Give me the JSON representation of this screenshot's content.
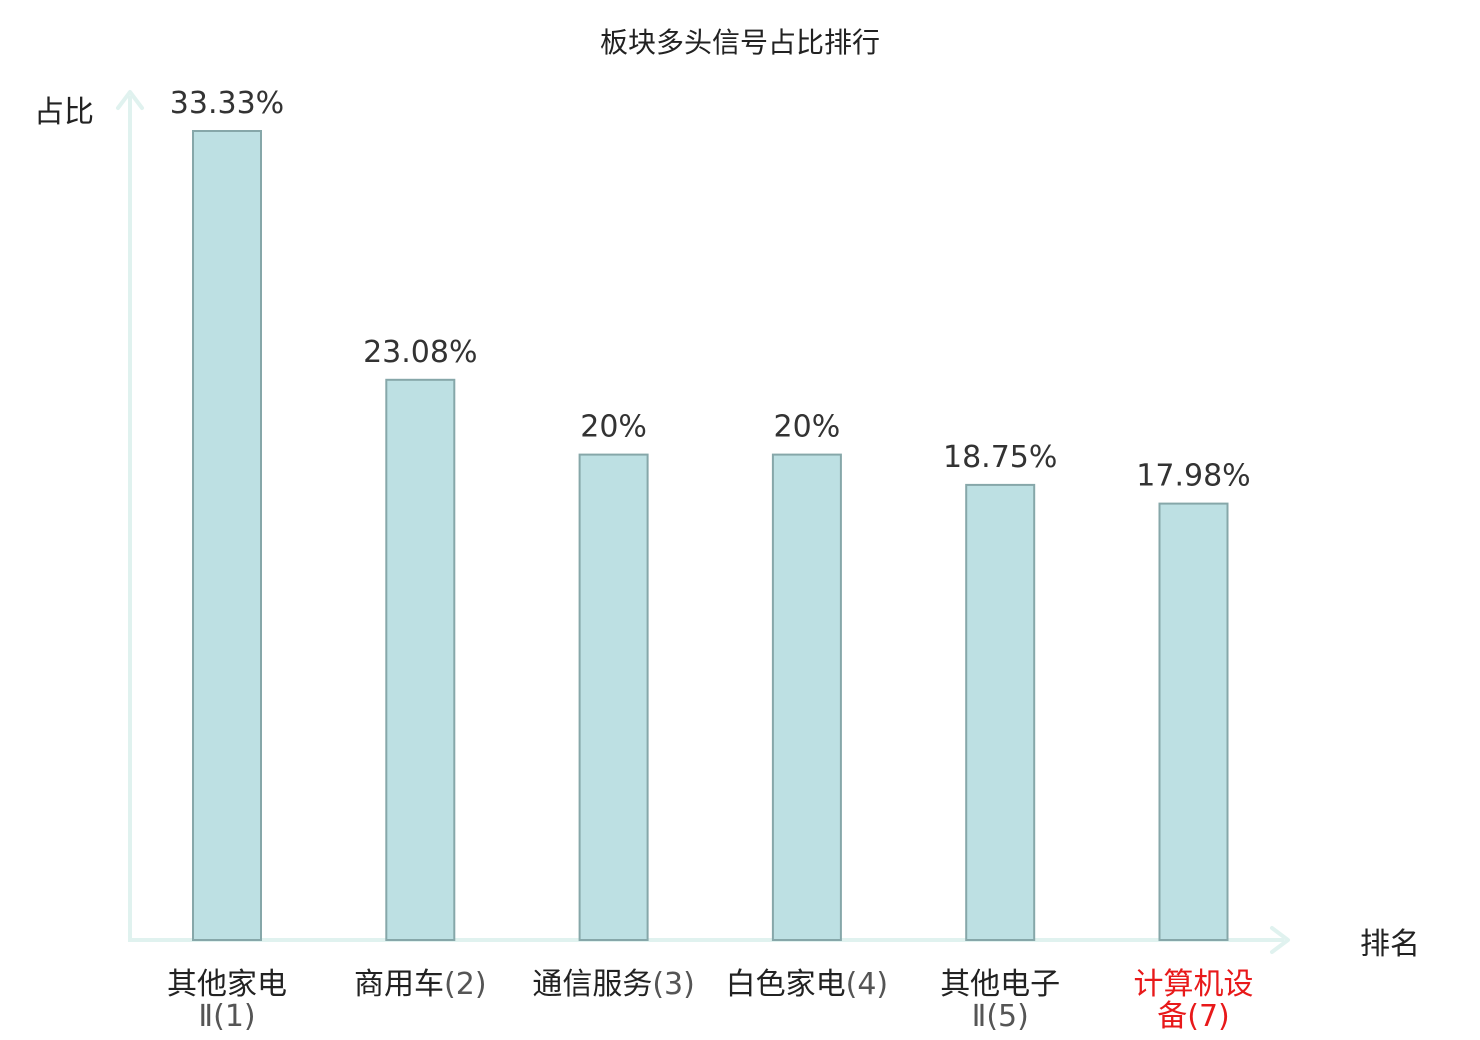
{
  "chart_data": {
    "type": "bar",
    "title": "板块多头信号占比排行",
    "xlabel": "排名",
    "ylabel": "占比",
    "categories": [
      {
        "name_line1": "其他家电",
        "name_line2": "Ⅱ(1)",
        "highlight": false
      },
      {
        "name_line1": "商用车",
        "name_line2": "(2)",
        "highlight": false
      },
      {
        "name_line1": "通信服务",
        "name_line2": "(3)",
        "highlight": false
      },
      {
        "name_line1": "白色家电",
        "name_line2": "(4)",
        "highlight": false
      },
      {
        "name_line1": "其他电子",
        "name_line2": "Ⅱ(5)",
        "highlight": false
      },
      {
        "name_line1": "计算机设",
        "name_line2": "备(7)",
        "highlight": true
      }
    ],
    "values": [
      33.33,
      23.08,
      20,
      20,
      18.75,
      17.98
    ],
    "value_labels": [
      "33.33%",
      "23.08%",
      "20%",
      "20%",
      "18.75%",
      "17.98%"
    ],
    "ylim": [
      0,
      33.33
    ],
    "grid": false,
    "legend": "none",
    "colors": {
      "bar_fill": "#bde0e3",
      "bar_stroke": "#86a7a9",
      "axis": "#e0f2ef",
      "highlight_text": "#e8191a"
    }
  }
}
